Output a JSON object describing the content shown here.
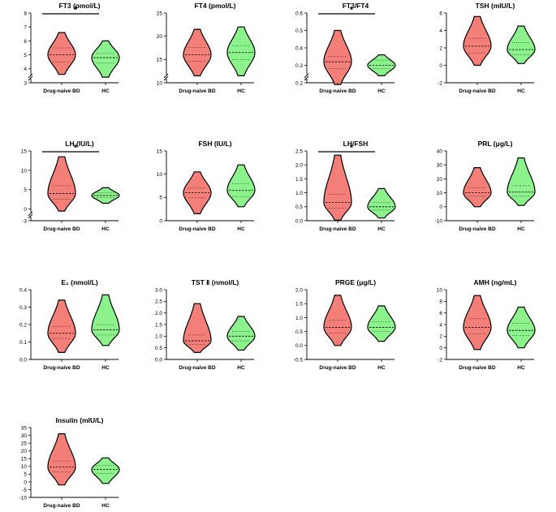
{
  "figure": {
    "colors": {
      "bd": "#f47e78",
      "hc": "#8bf28c",
      "outline": "#000000"
    },
    "categories": [
      "Drug-naive BD",
      "HC"
    ]
  },
  "chart_data": [
    {
      "type": "violin",
      "title": "FT3 (pmol/L)",
      "yticks": [
        "3",
        "4",
        "5",
        "6",
        "7",
        "8"
      ],
      "ylim": [
        3,
        8
      ],
      "axis_break": true,
      "significance": "*",
      "series": [
        {
          "name": "Drug-naive BD",
          "median": 5.0,
          "q1": 4.5,
          "q3": 5.5,
          "min": 3.6,
          "max": 6.6
        },
        {
          "name": "HC",
          "median": 4.8,
          "q1": 4.4,
          "q3": 5.1,
          "min": 3.4,
          "max": 6.0
        }
      ]
    },
    {
      "type": "violin",
      "title": "FT4 (pmol/L)",
      "yticks": [
        "10",
        "15",
        "20",
        "25"
      ],
      "ylim": [
        10,
        25
      ],
      "axis_break": true,
      "significance": "",
      "series": [
        {
          "name": "Drug-naive BD",
          "median": 16.0,
          "q1": 14.6,
          "q3": 17.6,
          "min": 11.5,
          "max": 21.5
        },
        {
          "name": "HC",
          "median": 16.5,
          "q1": 15.0,
          "q3": 18.0,
          "min": 11.5,
          "max": 22.0
        }
      ]
    },
    {
      "type": "violin",
      "title": "FT3/FT4",
      "yticks": [
        "0.2",
        "0.3",
        "0.4",
        "0.5",
        "0.6"
      ],
      "ylim": [
        0.2,
        0.6
      ],
      "axis_break": true,
      "significance": "*",
      "series": [
        {
          "name": "Drug-naive BD",
          "median": 0.32,
          "q1": 0.28,
          "q3": 0.35,
          "min": 0.19,
          "max": 0.5
        },
        {
          "name": "HC",
          "median": 0.3,
          "q1": 0.28,
          "q3": 0.33,
          "min": 0.24,
          "max": 0.36
        }
      ]
    },
    {
      "type": "violin",
      "title": "TSH (mIU/L)",
      "yticks": [
        "-2",
        "0",
        "2",
        "4",
        "6"
      ],
      "ylim": [
        -2,
        6
      ],
      "axis_break": false,
      "significance": "",
      "series": [
        {
          "name": "Drug-naive BD",
          "median": 2.2,
          "q1": 1.4,
          "q3": 3.1,
          "min": 0.0,
          "max": 5.6
        },
        {
          "name": "HC",
          "median": 1.8,
          "q1": 1.2,
          "q3": 2.6,
          "min": 0.2,
          "max": 4.5
        }
      ]
    },
    {
      "type": "violin",
      "title": "LH (IU/L)",
      "yticks": [
        "-3",
        "0",
        "5",
        "10",
        "15"
      ],
      "ylim": [
        -3,
        15
      ],
      "axis_break": true,
      "significance": "*",
      "series": [
        {
          "name": "Drug-naive BD",
          "median": 4.0,
          "q1": 2.6,
          "q3": 6.0,
          "min": -0.5,
          "max": 13.5
        },
        {
          "name": "HC",
          "median": 3.5,
          "q1": 3.0,
          "q3": 4.2,
          "min": 1.5,
          "max": 5.5
        }
      ]
    },
    {
      "type": "violin",
      "title": "FSH (IU/L)",
      "yticks": [
        "0",
        "5",
        "10",
        "15"
      ],
      "ylim": [
        0,
        15
      ],
      "axis_break": false,
      "significance": "",
      "series": [
        {
          "name": "Drug-naive BD",
          "median": 6.0,
          "q1": 4.9,
          "q3": 7.0,
          "min": 1.5,
          "max": 10.5
        },
        {
          "name": "HC",
          "median": 6.5,
          "q1": 5.2,
          "q3": 8.0,
          "min": 3.0,
          "max": 12.0
        }
      ]
    },
    {
      "type": "violin",
      "title": "LH/FSH",
      "yticks": [
        "0.0",
        "0.5",
        "1.0",
        "1.5",
        "2.0",
        "2.5"
      ],
      "ylim": [
        0,
        2.5
      ],
      "axis_break": false,
      "significance": "*",
      "series": [
        {
          "name": "Drug-naive BD",
          "median": 0.65,
          "q1": 0.45,
          "q3": 0.95,
          "min": 0.02,
          "max": 2.35
        },
        {
          "name": "HC",
          "median": 0.5,
          "q1": 0.38,
          "q3": 0.65,
          "min": 0.1,
          "max": 1.15
        }
      ]
    },
    {
      "type": "violin",
      "title": "PRL (μg/L)",
      "yticks": [
        "-10",
        "0",
        "10",
        "20",
        "30",
        "40"
      ],
      "ylim": [
        -10,
        40
      ],
      "axis_break": false,
      "significance": "",
      "series": [
        {
          "name": "Drug-naive BD",
          "median": 10.0,
          "q1": 7.5,
          "q3": 13.5,
          "min": 0.0,
          "max": 28.0
        },
        {
          "name": "HC",
          "median": 10.5,
          "q1": 7.5,
          "q3": 15.0,
          "min": 1.0,
          "max": 35.0
        }
      ]
    },
    {
      "type": "violin",
      "title": "E₂ (nmol/L)",
      "yticks": [
        "0.0",
        "0.1",
        "0.2",
        "0.3",
        "0.4"
      ],
      "ylim": [
        0,
        0.4
      ],
      "axis_break": false,
      "significance": "",
      "series": [
        {
          "name": "Drug-naive BD",
          "median": 0.15,
          "q1": 0.12,
          "q3": 0.19,
          "min": 0.04,
          "max": 0.34
        },
        {
          "name": "HC",
          "median": 0.17,
          "q1": 0.14,
          "q3": 0.2,
          "min": 0.08,
          "max": 0.37
        }
      ]
    },
    {
      "type": "violin",
      "title": "TST Ⅱ (nmol/L)",
      "yticks": [
        "0.0",
        "0.5",
        "1.0",
        "1.5",
        "2.0",
        "2.5",
        "3.0"
      ],
      "ylim": [
        0,
        3
      ],
      "axis_break": false,
      "significance": "",
      "series": [
        {
          "name": "Drug-naive BD",
          "median": 0.8,
          "q1": 0.65,
          "q3": 1.05,
          "min": 0.3,
          "max": 2.4
        },
        {
          "name": "HC",
          "median": 1.0,
          "q1": 0.8,
          "q3": 1.2,
          "min": 0.4,
          "max": 1.85
        }
      ]
    },
    {
      "type": "violin",
      "title": "PRGE (μg/L)",
      "yticks": [
        "-0.5",
        "0.0",
        "0.5",
        "1.0",
        "1.5",
        "2.0"
      ],
      "ylim": [
        -0.5,
        2
      ],
      "axis_break": false,
      "significance": "",
      "series": [
        {
          "name": "Drug-naive BD",
          "median": 0.65,
          "q1": 0.45,
          "q3": 0.9,
          "min": 0.0,
          "max": 1.8
        },
        {
          "name": "HC",
          "median": 0.65,
          "q1": 0.5,
          "q3": 0.85,
          "min": 0.15,
          "max": 1.42
        }
      ]
    },
    {
      "type": "violin",
      "title": "AMH (ng/mL)",
      "yticks": [
        "-2",
        "0",
        "2",
        "4",
        "6",
        "8",
        "10"
      ],
      "ylim": [
        -2,
        10
      ],
      "axis_break": false,
      "significance": "",
      "series": [
        {
          "name": "Drug-naive BD",
          "median": 3.5,
          "q1": 2.4,
          "q3": 5.0,
          "min": -0.3,
          "max": 9.0
        },
        {
          "name": "HC",
          "median": 3.0,
          "q1": 2.1,
          "q3": 4.2,
          "min": 0.0,
          "max": 7.0
        }
      ]
    },
    {
      "type": "violin",
      "title": "Insulin (mIU/L)",
      "yticks": [
        "-10",
        "-5",
        "0",
        "5",
        "10",
        "15",
        "20",
        "25",
        "30",
        "35"
      ],
      "ylim": [
        -10,
        35
      ],
      "axis_break": false,
      "significance": "",
      "series": [
        {
          "name": "Drug-naive BD",
          "median": 9.5,
          "q1": 6.5,
          "q3": 13.5,
          "min": -2.0,
          "max": 31.0
        },
        {
          "name": "HC",
          "median": 8.0,
          "q1": 5.5,
          "q3": 10.5,
          "min": -1.0,
          "max": 15.5
        }
      ]
    }
  ]
}
